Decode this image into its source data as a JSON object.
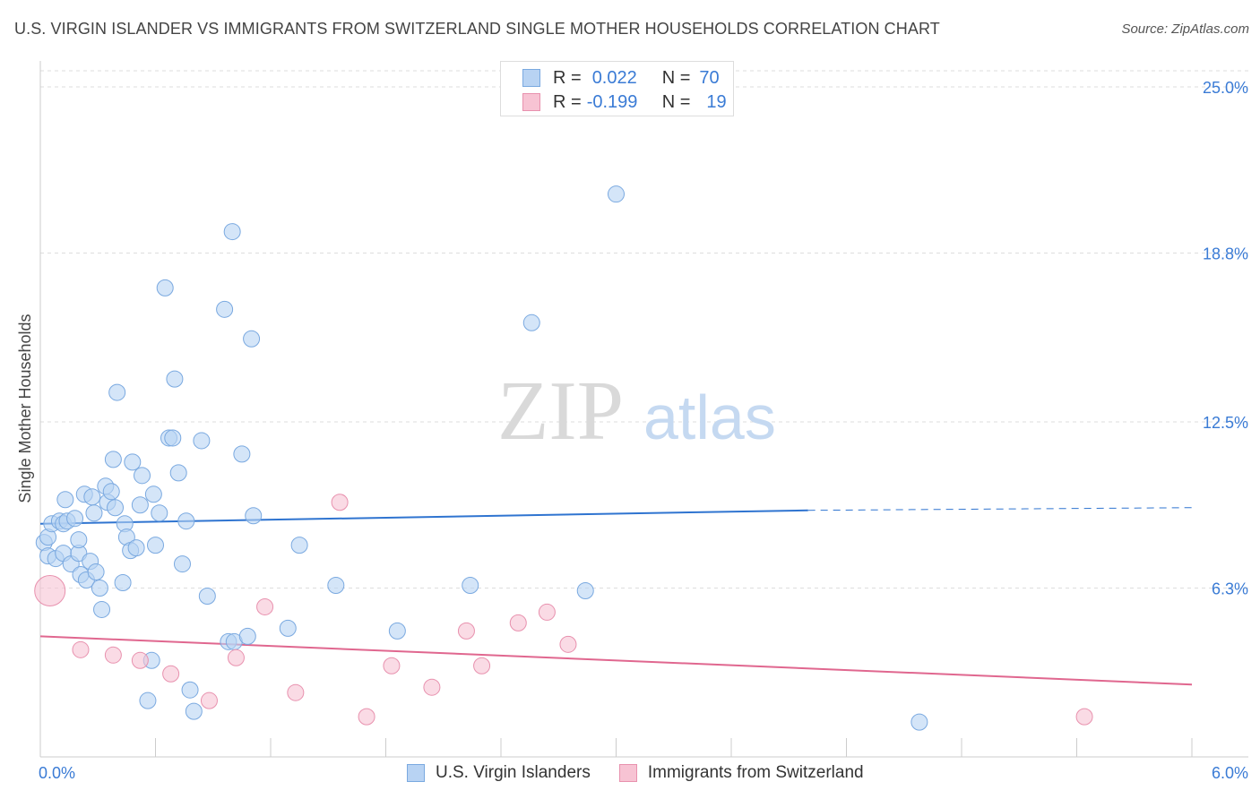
{
  "header": {
    "title": "U.S. VIRGIN ISLANDER VS IMMIGRANTS FROM SWITZERLAND SINGLE MOTHER HOUSEHOLDS CORRELATION CHART",
    "source": "Source: ZipAtlas.com"
  },
  "legend": {
    "row1": {
      "r_label": "R =",
      "r_value": "0.022",
      "n_label": "N =",
      "n_value": "70"
    },
    "row2": {
      "r_label": "R =",
      "r_value": "-0.199",
      "n_label": "N =",
      "n_value": "19"
    }
  },
  "bottom_legend": {
    "series1": "U.S. Virgin Islanders",
    "series2": "Immigrants from Switzerland"
  },
  "watermark": {
    "zip": "ZIP",
    "atlas": "atlas"
  },
  "colors": {
    "blue_fill": "#b8d3f3",
    "blue_stroke": "#7aa9e0",
    "blue_line": "#2f74d0",
    "pink_fill": "#f7c3d3",
    "pink_stroke": "#e891ae",
    "pink_line": "#e0678f",
    "axis_label": "#3a7bd5"
  },
  "chart_data": {
    "type": "scatter",
    "title": "U.S. VIRGIN ISLANDER VS IMMIGRANTS FROM SWITZERLAND SINGLE MOTHER HOUSEHOLDS CORRELATION CHART",
    "xlabel": "",
    "ylabel": "Single Mother Households",
    "xlim": [
      0.0,
      6.0
    ],
    "ylim": [
      0.0,
      25.0
    ],
    "x_tick_labels": [
      "0.0%",
      "6.0%"
    ],
    "y_ticks": [
      6.3,
      12.5,
      18.8,
      25.0
    ],
    "y_tick_labels": [
      "6.3%",
      "12.5%",
      "18.8%",
      "25.0%"
    ],
    "grid": true,
    "legend_position": "top-center",
    "series": [
      {
        "name": "U.S. Virgin Islanders",
        "r": 0.022,
        "n": 70,
        "trend": {
          "x": [
            0.0,
            4.0
          ],
          "y": [
            8.7,
            9.2
          ],
          "dashed_to": [
            6.0,
            9.3
          ]
        },
        "points": [
          [
            0.02,
            8.0
          ],
          [
            0.04,
            8.2
          ],
          [
            0.04,
            7.5
          ],
          [
            0.06,
            8.7
          ],
          [
            0.08,
            7.4
          ],
          [
            0.1,
            8.8
          ],
          [
            0.12,
            7.6
          ],
          [
            0.12,
            8.7
          ],
          [
            0.13,
            9.6
          ],
          [
            0.14,
            8.8
          ],
          [
            0.16,
            7.2
          ],
          [
            0.18,
            8.9
          ],
          [
            0.2,
            7.6
          ],
          [
            0.2,
            8.1
          ],
          [
            0.21,
            6.8
          ],
          [
            0.23,
            9.8
          ],
          [
            0.24,
            6.6
          ],
          [
            0.26,
            7.3
          ],
          [
            0.27,
            9.7
          ],
          [
            0.28,
            9.1
          ],
          [
            0.29,
            6.9
          ],
          [
            0.31,
            6.3
          ],
          [
            0.32,
            5.5
          ],
          [
            0.34,
            10.1
          ],
          [
            0.35,
            9.5
          ],
          [
            0.37,
            9.9
          ],
          [
            0.38,
            11.1
          ],
          [
            0.39,
            9.3
          ],
          [
            0.4,
            13.6
          ],
          [
            0.43,
            6.5
          ],
          [
            0.44,
            8.7
          ],
          [
            0.45,
            8.2
          ],
          [
            0.47,
            7.7
          ],
          [
            0.48,
            11.0
          ],
          [
            0.5,
            7.8
          ],
          [
            0.52,
            9.4
          ],
          [
            0.53,
            10.5
          ],
          [
            0.56,
            2.1
          ],
          [
            0.58,
            3.6
          ],
          [
            0.59,
            9.8
          ],
          [
            0.6,
            7.9
          ],
          [
            0.62,
            9.1
          ],
          [
            0.65,
            17.5
          ],
          [
            0.67,
            11.9
          ],
          [
            0.69,
            11.9
          ],
          [
            0.7,
            14.1
          ],
          [
            0.72,
            10.6
          ],
          [
            0.74,
            7.2
          ],
          [
            0.76,
            8.8
          ],
          [
            0.78,
            2.5
          ],
          [
            0.8,
            1.7
          ],
          [
            0.84,
            11.8
          ],
          [
            0.87,
            6.0
          ],
          [
            0.96,
            16.7
          ],
          [
            0.98,
            4.3
          ],
          [
            1.0,
            19.6
          ],
          [
            1.01,
            4.3
          ],
          [
            1.05,
            11.3
          ],
          [
            1.08,
            4.5
          ],
          [
            1.1,
            15.6
          ],
          [
            1.11,
            9.0
          ],
          [
            1.29,
            4.8
          ],
          [
            1.35,
            7.9
          ],
          [
            1.54,
            6.4
          ],
          [
            1.86,
            4.7
          ],
          [
            2.24,
            6.4
          ],
          [
            2.56,
            16.2
          ],
          [
            2.84,
            6.2
          ],
          [
            3.0,
            21.0
          ],
          [
            4.58,
            1.3
          ]
        ]
      },
      {
        "name": "Immigrants from Switzerland",
        "r": -0.199,
        "n": 19,
        "trend": {
          "x": [
            0.0,
            6.0
          ],
          "y": [
            4.5,
            2.7
          ]
        },
        "points": [
          [
            0.05,
            6.2
          ],
          [
            0.21,
            4.0
          ],
          [
            0.38,
            3.8
          ],
          [
            0.52,
            3.6
          ],
          [
            0.68,
            3.1
          ],
          [
            0.88,
            2.1
          ],
          [
            1.02,
            3.7
          ],
          [
            1.17,
            5.6
          ],
          [
            1.33,
            2.4
          ],
          [
            1.56,
            9.5
          ],
          [
            1.7,
            1.5
          ],
          [
            1.83,
            3.4
          ],
          [
            2.04,
            2.6
          ],
          [
            2.22,
            4.7
          ],
          [
            2.3,
            3.4
          ],
          [
            2.49,
            5.0
          ],
          [
            2.64,
            5.4
          ],
          [
            2.75,
            4.2
          ],
          [
            5.44,
            1.5
          ]
        ]
      }
    ]
  }
}
